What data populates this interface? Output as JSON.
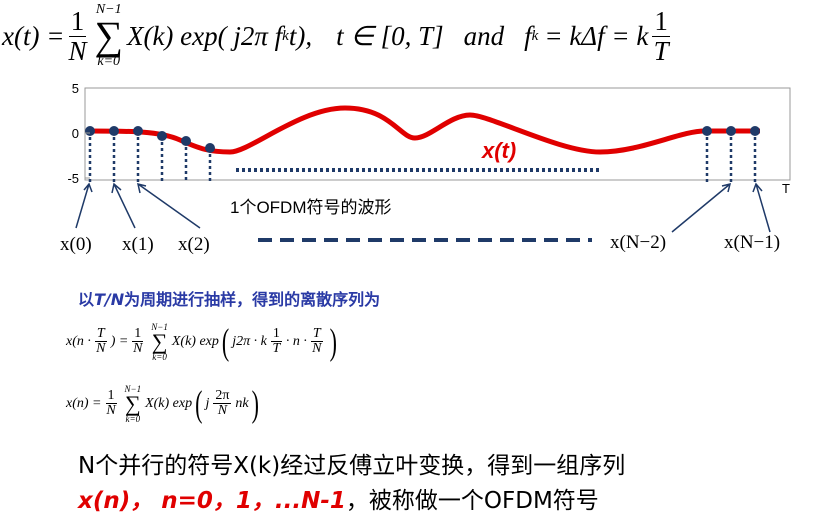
{
  "header_formula": {
    "lhs": "x(t) =",
    "coef": {
      "num": "1",
      "den": "N"
    },
    "sum_top": "N−1",
    "sum_sym": "∑",
    "sum_bottom": "k=0",
    "term": "X(k) exp( j2π f",
    "term_sub": "k",
    "term_end": "t),",
    "cond": "t ∈ [0,   T]",
    "and": "and",
    "rhs": "f",
    "rhs_sub": "k",
    "rhs_mid": "= kΔf = k",
    "rhs_frac": {
      "num": "1",
      "den": "T"
    }
  },
  "waveform": {
    "ylim": [
      -5,
      5
    ],
    "yticks": [
      5,
      0,
      -5
    ],
    "x_end_label": "T",
    "curve_label": "x(t)",
    "caption": "1个OFDM符号的波形",
    "samples": [
      "x(0)",
      "x(1)",
      "x(2)",
      "x(N−2)",
      "x(N−1)"
    ]
  },
  "heading": [
    "以",
    "T/N",
    "为周期进行抽样，得到的离散序列为"
  ],
  "formula_2": {
    "lhs_open": "x(n ·",
    "lhs_frac": {
      "num": "T",
      "den": "N"
    },
    "lhs_close": ") =",
    "coef": {
      "num": "1",
      "den": "N"
    },
    "sum_top": "N−1",
    "sum_sym": "∑",
    "sum_bottom": "k=0",
    "term": "X(k) exp",
    "paren_open": "(",
    "arg1": "j2π · k",
    "arg_frac1": {
      "num": "1",
      "den": "T"
    },
    "arg2": "· n ·",
    "arg_frac2": {
      "num": "T",
      "den": "N"
    },
    "paren_close": ")"
  },
  "formula_3": {
    "lhs": "x(n) =",
    "coef": {
      "num": "1",
      "den": "N"
    },
    "sum_top": "N−1",
    "sum_sym": "∑",
    "sum_bottom": "k=0",
    "term": "X(k) exp",
    "paren_open": "(",
    "arg1": "j",
    "arg_frac": {
      "num": "2π",
      "den": "N"
    },
    "arg2": "nk",
    "paren_close": ")"
  },
  "body": {
    "line1": "N个并行的符号X(k)经过反傅立叶变换，得到一组序列",
    "line2_emph": "x(n)，  n=0，1，...N-1",
    "line2_rest": "，被称做一个OFDM符号"
  }
}
